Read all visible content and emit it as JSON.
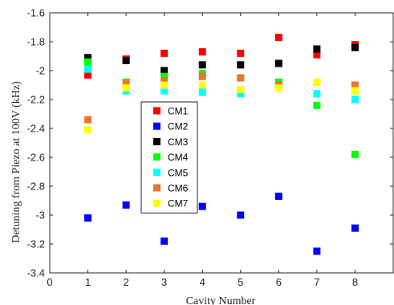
{
  "chart_data": {
    "type": "scatter",
    "title": "",
    "xlabel": "Cavity Number",
    "ylabel": "Detuning from Piezo at 100V (kHz)",
    "xlim": [
      0,
      9
    ],
    "ylim": [
      -3.4,
      -1.6
    ],
    "xticks": [
      0,
      1,
      2,
      3,
      4,
      5,
      6,
      7,
      8
    ],
    "yticks": [
      -3.4,
      -3.2,
      -3,
      -2.8,
      -2.6,
      -2.4,
      -2.2,
      -2,
      -1.8,
      -1.6
    ],
    "xtick_labels": [
      "0",
      "1",
      "2",
      "3",
      "4",
      "5",
      "6",
      "7",
      "8"
    ],
    "ytick_labels": [
      "-3.4",
      "-3.2",
      "-3",
      "-2.8",
      "-2.6",
      "-2.4",
      "-2.2",
      "-2",
      "-1.8",
      "-1.6"
    ],
    "grid": false,
    "legend_position": "center-left",
    "marker": "square",
    "x": [
      1,
      2,
      3,
      4,
      5,
      6,
      7,
      8
    ],
    "series": [
      {
        "name": "CM1",
        "color": "#ff0000",
        "values": [
          -2.03,
          -1.92,
          -1.88,
          -1.87,
          -1.88,
          -1.77,
          -1.89,
          -1.82
        ]
      },
      {
        "name": "CM2",
        "color": "#0000ff",
        "values": [
          -3.02,
          -2.93,
          -3.18,
          -2.94,
          -3.0,
          -2.87,
          -3.25,
          -3.09
        ]
      },
      {
        "name": "CM3",
        "color": "#000000",
        "values": [
          -1.91,
          -1.93,
          -2.0,
          -1.96,
          -1.96,
          -1.95,
          -1.85,
          -1.84
        ]
      },
      {
        "name": "CM4",
        "color": "#00ff00",
        "values": [
          -1.94,
          -2.08,
          -2.04,
          -2.02,
          -2.15,
          -2.08,
          -2.24,
          -2.58
        ]
      },
      {
        "name": "CM5",
        "color": "#00ffff",
        "values": [
          -1.99,
          -2.14,
          -2.14,
          -2.15,
          -2.16,
          -2.1,
          -2.16,
          -2.2
        ]
      },
      {
        "name": "CM6",
        "color": "#e9752f",
        "values": [
          -2.34,
          -2.09,
          -2.07,
          -2.04,
          -2.05,
          -2.1,
          -2.08,
          -2.1
        ]
      },
      {
        "name": "CM7",
        "color": "#ffff00",
        "values": [
          -2.41,
          -2.12,
          -2.1,
          -2.1,
          -2.13,
          -2.12,
          -2.08,
          -2.14
        ]
      }
    ]
  }
}
